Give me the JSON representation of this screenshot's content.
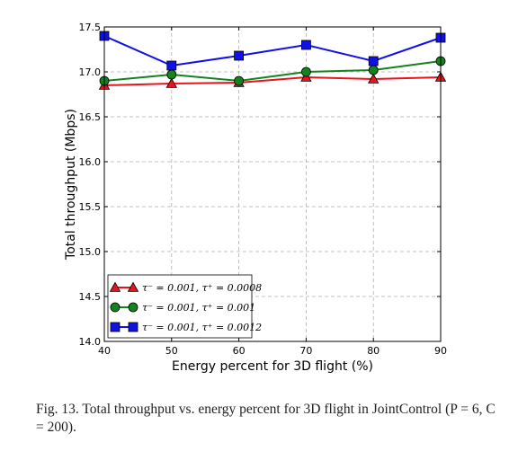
{
  "chart_data": {
    "type": "line",
    "x": [
      40,
      50,
      60,
      70,
      80,
      90
    ],
    "xlabel": "Energy percent for 3D flight (%)",
    "ylabel": "Total throughput (Mbps)",
    "xlim": [
      40,
      90
    ],
    "ylim": [
      14.0,
      17.5
    ],
    "xticks": [
      "40",
      "50",
      "60",
      "70",
      "80",
      "90"
    ],
    "yticks": [
      "14.0",
      "14.5",
      "15.0",
      "15.5",
      "16.0",
      "16.5",
      "17.0",
      "17.5"
    ],
    "grid": true,
    "legend_position": "lower-left",
    "series": [
      {
        "name": "τ⁻ = 0.001, τ⁺ = 0.0008",
        "values": [
          16.85,
          16.87,
          16.88,
          16.94,
          16.92,
          16.94
        ],
        "color": "#e8141a",
        "marker": "triangle"
      },
      {
        "name": "τ⁻ = 0.001, τ⁺ = 0.001",
        "values": [
          16.9,
          16.97,
          16.9,
          17.0,
          17.02,
          17.12
        ],
        "color": "#14821e",
        "marker": "circle"
      },
      {
        "name": "τ⁻ = 0.001, τ⁺ = 0.0012",
        "values": [
          17.4,
          17.07,
          17.18,
          17.3,
          17.12,
          17.38
        ],
        "color": "#1010e8",
        "marker": "square"
      }
    ]
  },
  "caption": "Fig. 13.  Total throughput vs. energy percent for 3D flight in JointControl (P = 6, C = 200)."
}
